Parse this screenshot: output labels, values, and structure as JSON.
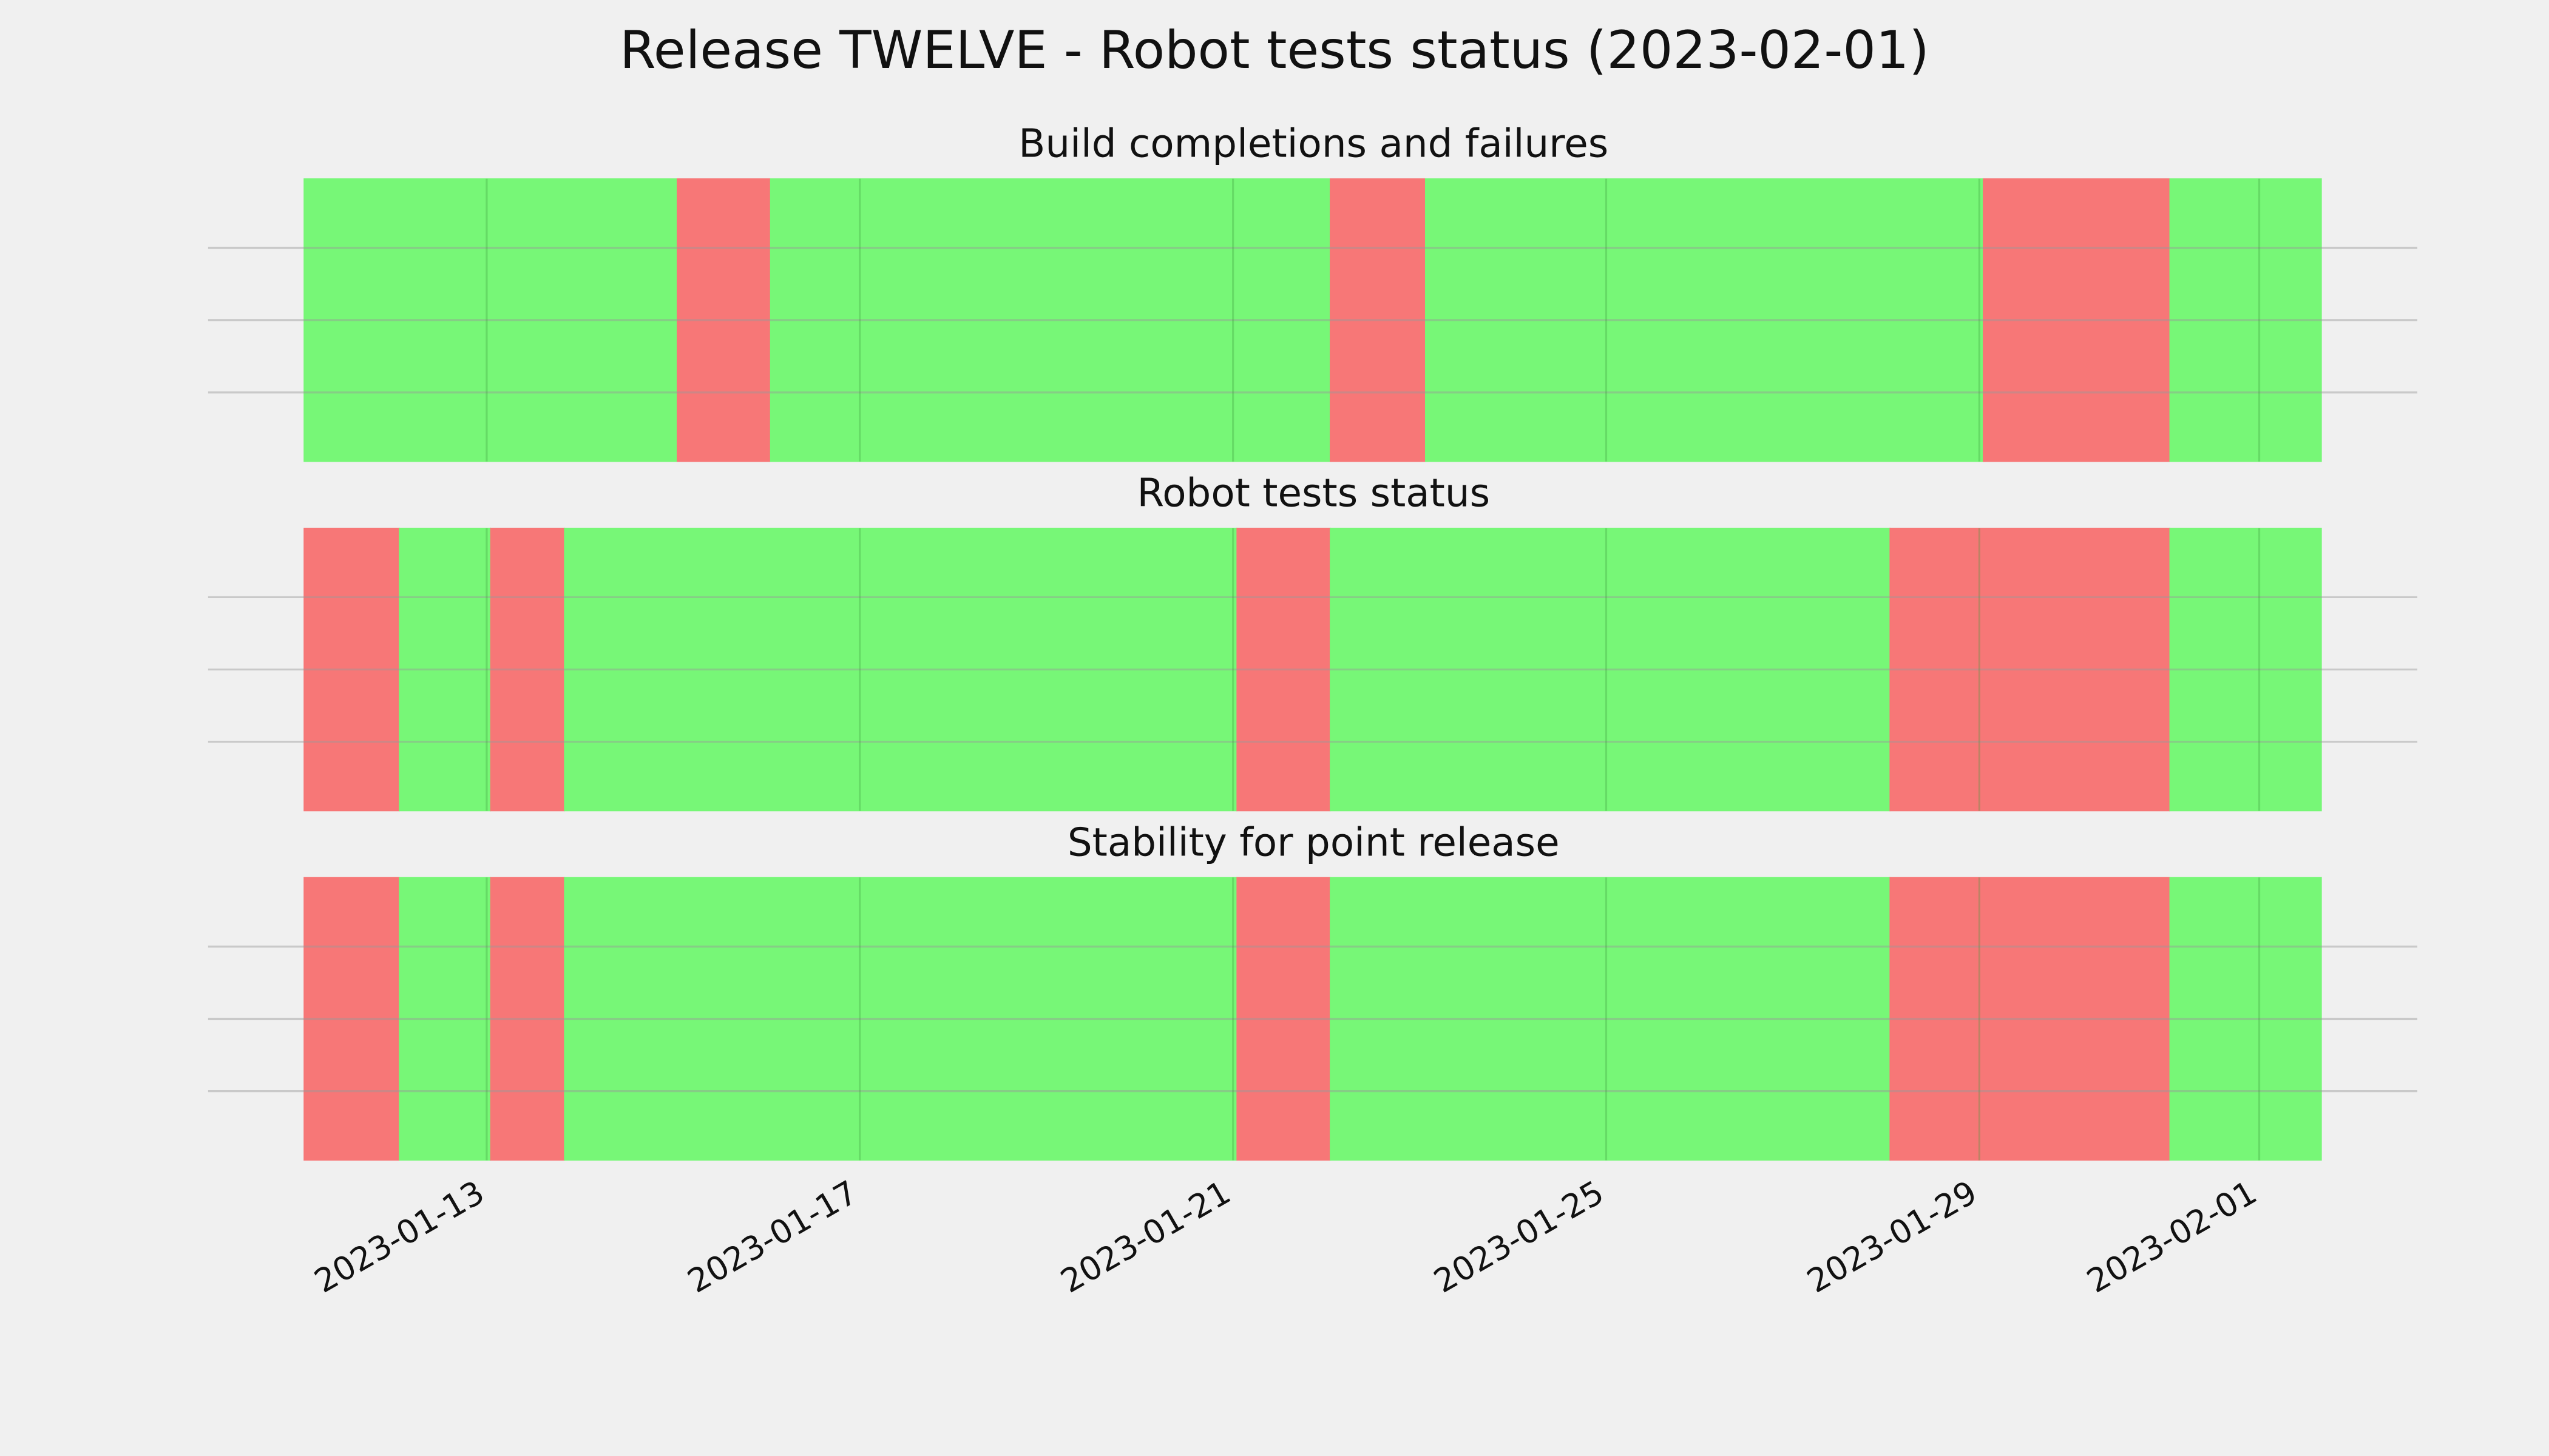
{
  "chart_data": {
    "type": "timeline",
    "title": "Release TWELVE - Robot tests status (2023-02-01)",
    "xlim": [
      "2023-01-11T01:00",
      "2023-02-01T16:00"
    ],
    "xticks": [
      "2023-01-13",
      "2023-01-17",
      "2023-01-21",
      "2023-01-25",
      "2023-01-29",
      "2023-02-01"
    ],
    "grid": true,
    "panels": [
      {
        "title": "Build completions and failures",
        "x": [
          "2023-01-11T01:00",
          "2023-01-15T01:00",
          "2023-01-16T01:00",
          "2023-01-22T01:00",
          "2023-01-23T01:30",
          "2023-01-29T01:00",
          "2023-01-31T01:00",
          "2023-02-01T16:00"
        ],
        "colors": [
          "#77f777",
          "#f77777",
          "#77f777",
          "#f77777",
          "#77f777",
          "#f77777",
          "#77f777"
        ]
      },
      {
        "title": "Robot tests status",
        "x": [
          "2023-01-11T01:00",
          "2023-01-12T01:30",
          "2023-01-13T01:00",
          "2023-01-13T20:00",
          "2023-01-21T01:00",
          "2023-01-22T01:00",
          "2023-01-28T01:00",
          "2023-01-31T01:00",
          "2023-02-01T16:00"
        ],
        "colors": [
          "#f77777",
          "#77f777",
          "#f77777",
          "#77f777",
          "#f77777",
          "#77f777",
          "#f77777",
          "#77f777"
        ]
      },
      {
        "title": "Stability for point release",
        "x": [
          "2023-01-11T01:00",
          "2023-01-12T01:30",
          "2023-01-13T01:00",
          "2023-01-13T20:00",
          "2023-01-21T01:00",
          "2023-01-22T01:00",
          "2023-01-28T01:00",
          "2023-01-31T01:00",
          "2023-02-01T16:00"
        ],
        "colors": [
          "#f77777",
          "#77f777",
          "#f77777",
          "#77f777",
          "#f77777",
          "#77f777",
          "#f77777",
          "#77f777"
        ]
      }
    ]
  }
}
